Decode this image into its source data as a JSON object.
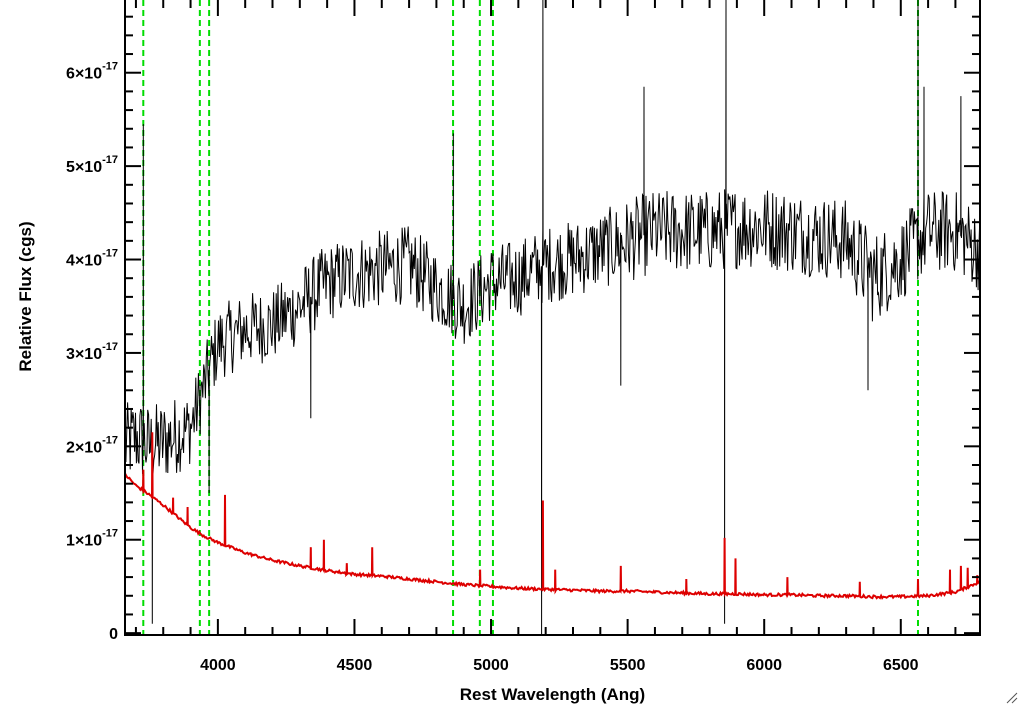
{
  "chart_data": {
    "type": "line",
    "title": "",
    "xlabel": "Rest Wavelength (Ang)",
    "ylabel": "Relative Flux (cgs)",
    "xlim": [
      3660,
      6790
    ],
    "ylim": [
      -0.02,
      6.8
    ],
    "y_unit_exponent": "-17",
    "x_ticks": [
      4000,
      4500,
      5000,
      5500,
      6000,
      6500
    ],
    "x_tick_labels": [
      "4000",
      "4500",
      "5000",
      "5500",
      "6000",
      "6500"
    ],
    "y_ticks": [
      0,
      1,
      2,
      3,
      4,
      5,
      6
    ],
    "y_tick_labels": [
      {
        "mantissa": "0",
        "exp": ""
      },
      {
        "mantissa": "1×10",
        "exp": "-17"
      },
      {
        "mantissa": "2×10",
        "exp": "-17"
      },
      {
        "mantissa": "3×10",
        "exp": "-17"
      },
      {
        "mantissa": "4×10",
        "exp": "-17"
      },
      {
        "mantissa": "5×10",
        "exp": "-17"
      },
      {
        "mantissa": "6×10",
        "exp": "-17"
      }
    ],
    "grid": false,
    "series": [
      {
        "color": "#000000",
        "style": "spectrum-noisy",
        "x": [
          3660,
          3700,
          3750,
          3800,
          3900,
          4000,
          4100,
          4200,
          4300,
          4400,
          4500,
          4600,
          4700,
          4800,
          4900,
          5000,
          5100,
          5200,
          5300,
          5400,
          5500,
          5600,
          5700,
          5800,
          5900,
          6000,
          6100,
          6200,
          6300,
          6400,
          6500,
          6600,
          6700,
          6790
        ],
        "y": [
          2.0,
          2.1,
          2.0,
          2.05,
          2.2,
          3.1,
          3.25,
          3.3,
          3.5,
          3.75,
          3.85,
          3.9,
          3.95,
          3.7,
          3.5,
          3.75,
          3.8,
          3.95,
          4.0,
          4.1,
          4.2,
          4.3,
          4.3,
          4.3,
          4.35,
          4.35,
          4.3,
          4.25,
          4.2,
          3.8,
          4.0,
          4.3,
          4.3,
          4.1
        ],
        "noise": [
          0.45,
          0.45,
          0.45,
          0.45,
          0.4,
          0.4,
          0.4,
          0.4,
          0.42,
          0.42,
          0.42,
          0.42,
          0.42,
          0.42,
          0.42,
          0.42,
          0.42,
          0.42,
          0.42,
          0.42,
          0.45,
          0.45,
          0.45,
          0.45,
          0.45,
          0.45,
          0.45,
          0.45,
          0.45,
          0.5,
          0.45,
          0.45,
          0.45,
          0.45
        ],
        "spikes": [
          {
            "x": 3727,
            "y": 5.45
          },
          {
            "x": 3760,
            "y": 0.1
          },
          {
            "x": 3968,
            "y": 1.5
          },
          {
            "x": 4340,
            "y": 2.3
          },
          {
            "x": 4862,
            "y": 5.35
          },
          {
            "x": 5185,
            "y": -0.02
          },
          {
            "x": 5190,
            "y": 6.8
          },
          {
            "x": 5475,
            "y": 2.65
          },
          {
            "x": 5560,
            "y": 5.85
          },
          {
            "x": 5855,
            "y": 0.1
          },
          {
            "x": 5860,
            "y": 6.8
          },
          {
            "x": 6380,
            "y": 2.6
          },
          {
            "x": 6563,
            "y": 6.8
          },
          {
            "x": 6585,
            "y": 5.85
          },
          {
            "x": 6720,
            "y": 5.75
          }
        ]
      },
      {
        "color": "#dd0000",
        "style": "model-with-lines",
        "x": [
          3660,
          3700,
          3750,
          3800,
          3850,
          3900,
          3950,
          4000,
          4100,
          4200,
          4300,
          4400,
          4500,
          4600,
          4700,
          4800,
          4900,
          5000,
          5100,
          5200,
          5300,
          5400,
          5500,
          5600,
          5700,
          5800,
          5900,
          6000,
          6100,
          6200,
          6300,
          6400,
          6500,
          6600,
          6700,
          6790
        ],
        "y": [
          1.7,
          1.58,
          1.48,
          1.37,
          1.25,
          1.13,
          1.04,
          0.97,
          0.86,
          0.78,
          0.72,
          0.67,
          0.63,
          0.61,
          0.58,
          0.55,
          0.52,
          0.5,
          0.48,
          0.47,
          0.46,
          0.45,
          0.45,
          0.44,
          0.43,
          0.42,
          0.42,
          0.41,
          0.41,
          0.4,
          0.4,
          0.39,
          0.39,
          0.4,
          0.44,
          0.55
        ],
        "lines": [
          {
            "x": 3727,
            "y": 1.75
          },
          {
            "x": 3760,
            "y": 2.15
          },
          {
            "x": 3836,
            "y": 1.45
          },
          {
            "x": 3889,
            "y": 1.35
          },
          {
            "x": 4026,
            "y": 1.48
          },
          {
            "x": 4340,
            "y": 0.92
          },
          {
            "x": 4388,
            "y": 1.0
          },
          {
            "x": 4472,
            "y": 0.75
          },
          {
            "x": 4565,
            "y": 0.92
          },
          {
            "x": 4960,
            "y": 0.68
          },
          {
            "x": 5190,
            "y": 1.42
          },
          {
            "x": 5235,
            "y": 0.68
          },
          {
            "x": 5475,
            "y": 0.72
          },
          {
            "x": 5715,
            "y": 0.58
          },
          {
            "x": 5855,
            "y": 1.02
          },
          {
            "x": 5895,
            "y": 0.8
          },
          {
            "x": 6085,
            "y": 0.6
          },
          {
            "x": 6350,
            "y": 0.55
          },
          {
            "x": 6563,
            "y": 0.58
          },
          {
            "x": 6680,
            "y": 0.68
          },
          {
            "x": 6720,
            "y": 0.72
          },
          {
            "x": 6745,
            "y": 0.7
          },
          {
            "x": 6780,
            "y": 0.62
          }
        ]
      }
    ],
    "vlines": [
      3727,
      3934,
      3968,
      4861,
      4959,
      5007,
      6563
    ],
    "vline_color": "#00dd00",
    "vline_style": "dashed"
  }
}
